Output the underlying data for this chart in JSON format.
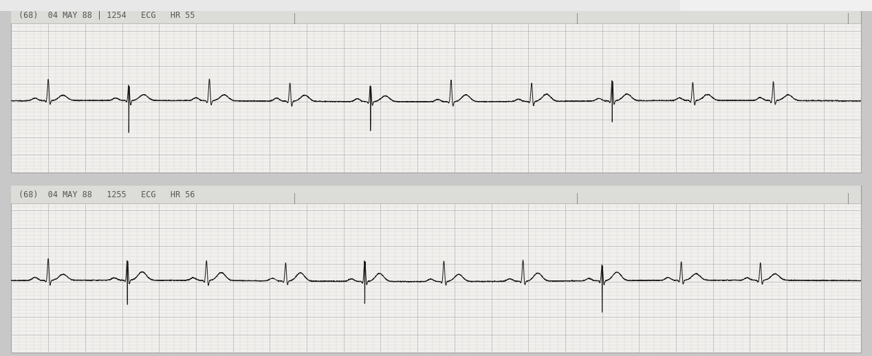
{
  "bg_color": "#c8c8c8",
  "grid_color_minor": "#c8c8c0",
  "grid_color_major": "#aaaaaa",
  "paper_color": "#f2f0ee",
  "ecg_color": "#1a1a1a",
  "header1": "(68)  04 MAY 88 | 1254   ECG   HR 55",
  "header2": "(68)  04 MAY 88   1255   ECG   HR 56",
  "header_color": "#555555",
  "header_fontsize": 8.5,
  "separator_color": "#999999",
  "tick_color": "#888888"
}
